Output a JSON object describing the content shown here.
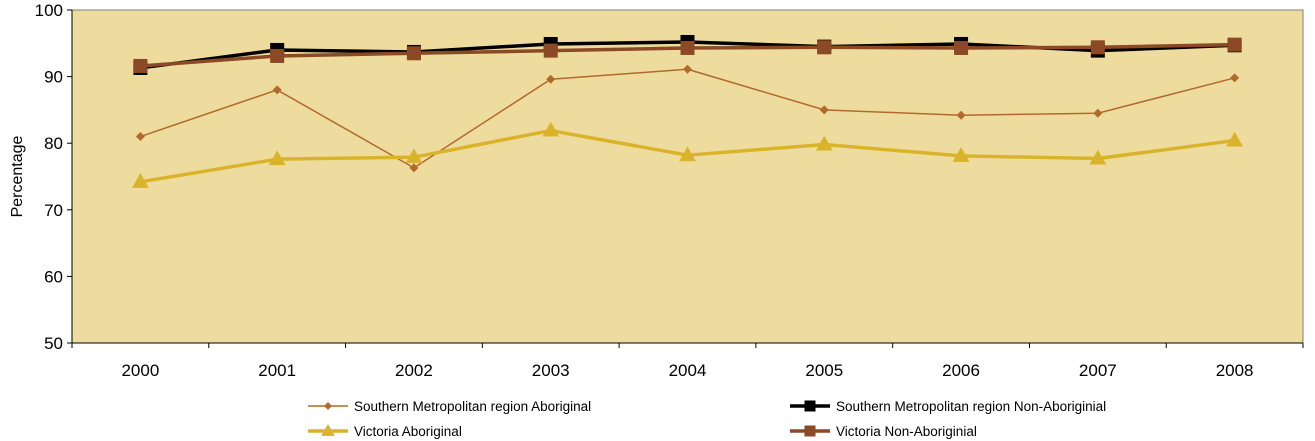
{
  "chart_data": {
    "type": "line",
    "title": "",
    "xlabel": "",
    "ylabel": "Percentage",
    "ylim": [
      50,
      100
    ],
    "yticks": [
      50,
      60,
      70,
      80,
      90,
      100
    ],
    "categories": [
      "2000",
      "2001",
      "2002",
      "2003",
      "2004",
      "2005",
      "2006",
      "2007",
      "2008"
    ],
    "grid": false,
    "legend_position": "bottom",
    "plot_background": "#eedc9f",
    "series": [
      {
        "name": "Southern Metropolitan region Aboriginal",
        "values": [
          81.0,
          88.0,
          76.3,
          89.6,
          91.1,
          85.0,
          84.2,
          84.5,
          89.8
        ],
        "color": "#b26a2c",
        "marker": "diamond",
        "line_width": "thin"
      },
      {
        "name": "Southern Metropolitan region Non-Aboriginial",
        "values": [
          91.3,
          94.0,
          93.7,
          94.9,
          95.2,
          94.5,
          94.9,
          93.9,
          94.7
        ],
        "color": "#000000",
        "marker": "square",
        "line_width": "thick"
      },
      {
        "name": "Victoria Aboriginal",
        "values": [
          74.2,
          77.6,
          77.9,
          81.9,
          78.2,
          79.8,
          78.1,
          77.7,
          80.4
        ],
        "color": "#d9b42b",
        "marker": "triangle",
        "line_width": "thick"
      },
      {
        "name": "Victoria Non-Aboriginial",
        "values": [
          91.6,
          93.1,
          93.5,
          93.9,
          94.3,
          94.4,
          94.3,
          94.4,
          94.8
        ],
        "color": "#8b4a25",
        "marker": "square",
        "line_width": "thick"
      }
    ]
  }
}
